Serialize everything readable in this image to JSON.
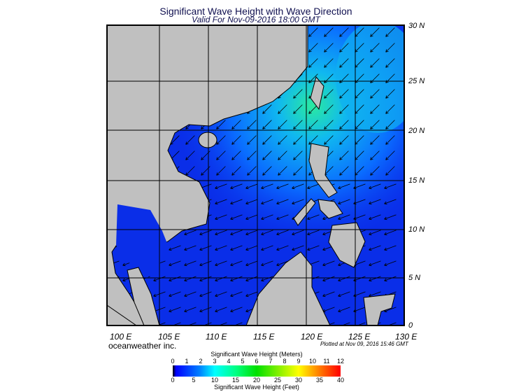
{
  "title": "Significant Wave Height with Wave Direction",
  "subtitle": "Valid For Nov-09-2016 18:00 GMT",
  "lat_labels": [
    "30 N",
    "25 N",
    "20 N",
    "15 N",
    "10 N",
    "5 N",
    "0"
  ],
  "lon_labels": [
    "100 E",
    "105 E",
    "110 E",
    "115 E",
    "120 E",
    "125 E",
    "130 E"
  ],
  "branding": "oceanweather inc.",
  "plotted": "Plotted at Nov 09, 2016 15:46 GMT",
  "colorbar": {
    "meters_title": "Significant Wave Height (Meters)",
    "meters_ticks": [
      "0",
      "1",
      "2",
      "3",
      "4",
      "5",
      "6",
      "7",
      "8",
      "9",
      "10",
      "11",
      "12"
    ],
    "feet_ticks": [
      "0",
      "5",
      "10",
      "15",
      "20",
      "25",
      "30",
      "35",
      "40"
    ],
    "feet_title": "Significant Wave Height (Feet)",
    "colors": [
      "#000000",
      "#0000ff",
      "#0080ff",
      "#00ffff",
      "#00ff80",
      "#00e000",
      "#ffff00",
      "#ff8000",
      "#ff0000"
    ]
  },
  "map": {
    "extent_lon": [
      100,
      130
    ],
    "extent_lat": [
      0,
      30
    ],
    "land_color": "#c0c0c0",
    "prevailing_wave_direction": "toward SW"
  }
}
